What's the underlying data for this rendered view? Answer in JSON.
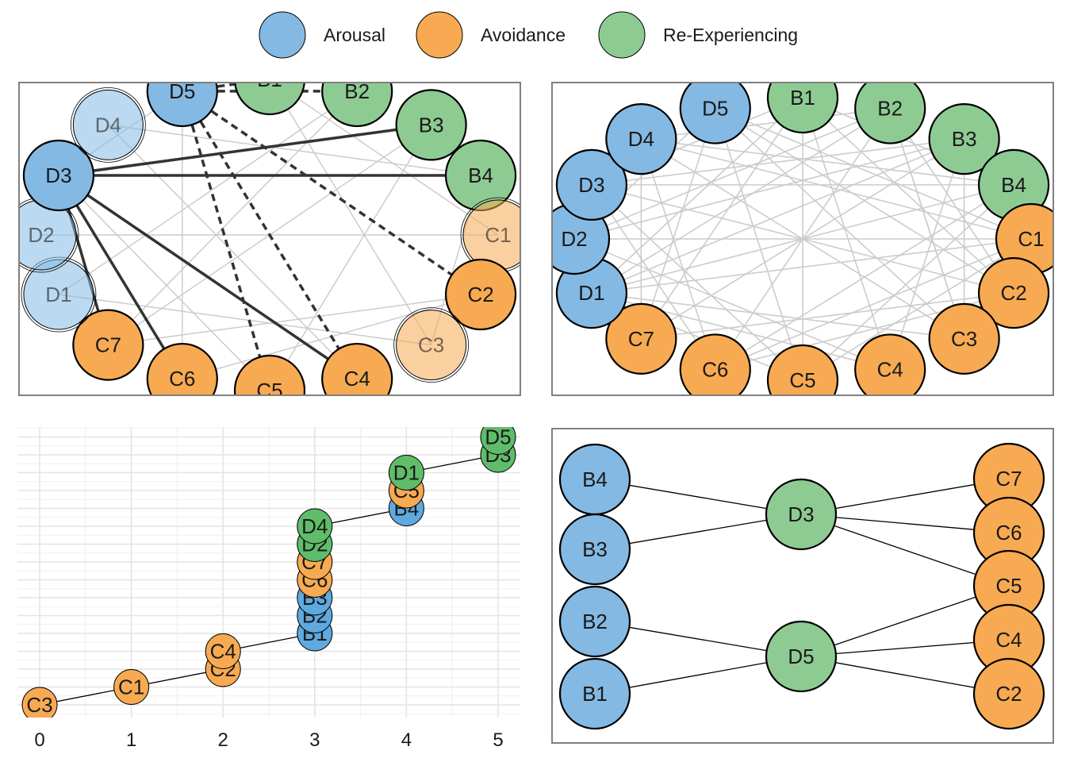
{
  "colors": {
    "arousal": "#84b9e3",
    "avoidance": "#f7aa52",
    "reexp": "#8ecb93",
    "p3_blue": "#5ea9e0",
    "p3_orange": "#f7aa52",
    "p3_green": "#5fbd6a",
    "edge_light": "#cccccc",
    "edge_dark": "#333333",
    "panel_border": "#808080"
  },
  "legend": [
    {
      "label": "Arousal",
      "color": "arousal"
    },
    {
      "label": "Avoidance",
      "color": "avoidance"
    },
    {
      "label": "Re-Experiencing",
      "color": "reexp"
    }
  ],
  "circle_nodes": [
    {
      "id": "D5",
      "group": "arousal"
    },
    {
      "id": "B1",
      "group": "reexp"
    },
    {
      "id": "B2",
      "group": "reexp"
    },
    {
      "id": "B3",
      "group": "reexp"
    },
    {
      "id": "B4",
      "group": "reexp"
    },
    {
      "id": "C1",
      "group": "avoidance"
    },
    {
      "id": "C2",
      "group": "avoidance"
    },
    {
      "id": "C3",
      "group": "avoidance"
    },
    {
      "id": "C4",
      "group": "avoidance"
    },
    {
      "id": "C5",
      "group": "avoidance"
    },
    {
      "id": "C6",
      "group": "avoidance"
    },
    {
      "id": "C7",
      "group": "avoidance"
    },
    {
      "id": "D1",
      "group": "arousal"
    },
    {
      "id": "D2",
      "group": "arousal"
    },
    {
      "id": "D3",
      "group": "arousal"
    },
    {
      "id": "D4",
      "group": "arousal"
    }
  ],
  "panel1": {
    "faded_nodes": [
      "D4",
      "D2",
      "D1",
      "C1",
      "C3"
    ],
    "solid_edges": [
      [
        "D3",
        "B3"
      ],
      [
        "D3",
        "B4"
      ],
      [
        "D3",
        "C4"
      ],
      [
        "D3",
        "C6"
      ],
      [
        "D3",
        "C7"
      ]
    ],
    "dashed_edges": [
      [
        "D5",
        "B1"
      ],
      [
        "D5",
        "B2"
      ],
      [
        "D5",
        "C2"
      ],
      [
        "D5",
        "C4"
      ],
      [
        "D5",
        "C5"
      ]
    ],
    "light_edges": [
      [
        "D3",
        "D5"
      ],
      [
        "D3",
        "C5"
      ],
      [
        "D5",
        "C6"
      ],
      [
        "B1",
        "C1"
      ],
      [
        "B2",
        "C7"
      ],
      [
        "B3",
        "C5"
      ],
      [
        "B4",
        "C3"
      ],
      [
        "C1",
        "D2"
      ],
      [
        "C2",
        "C7"
      ],
      [
        "D4",
        "C4"
      ],
      [
        "B1",
        "C3"
      ],
      [
        "B2",
        "D1"
      ],
      [
        "C2",
        "C6"
      ],
      [
        "D4",
        "B4"
      ],
      [
        "D1",
        "C3"
      ],
      [
        "B3",
        "C7"
      ]
    ]
  },
  "panel2": {
    "edges": [
      [
        "D5",
        "C5"
      ],
      [
        "B1",
        "C5"
      ],
      [
        "B1",
        "C4"
      ],
      [
        "B2",
        "C6"
      ],
      [
        "B3",
        "C7"
      ],
      [
        "B4",
        "D1"
      ],
      [
        "C1",
        "D2"
      ],
      [
        "C2",
        "D3"
      ],
      [
        "C3",
        "D4"
      ],
      [
        "D5",
        "C3"
      ],
      [
        "B1",
        "C7"
      ],
      [
        "B2",
        "D1"
      ],
      [
        "B3",
        "D2"
      ],
      [
        "B4",
        "D3"
      ],
      [
        "C1",
        "D4"
      ],
      [
        "C2",
        "D5"
      ],
      [
        "B1",
        "C2"
      ],
      [
        "B2",
        "C3"
      ],
      [
        "B3",
        "C4"
      ],
      [
        "B4",
        "C5"
      ],
      [
        "C1",
        "C6"
      ],
      [
        "C2",
        "C7"
      ],
      [
        "C3",
        "D1"
      ],
      [
        "C4",
        "D2"
      ],
      [
        "C5",
        "D3"
      ],
      [
        "C6",
        "D4"
      ],
      [
        "C7",
        "D5"
      ],
      [
        "D1",
        "B1"
      ],
      [
        "D2",
        "B2"
      ],
      [
        "D3",
        "B3"
      ],
      [
        "D4",
        "B4"
      ],
      [
        "D5",
        "C1"
      ],
      [
        "B1",
        "B4"
      ],
      [
        "B2",
        "C2"
      ],
      [
        "B3",
        "C3"
      ],
      [
        "C1",
        "C5"
      ],
      [
        "C2",
        "C6"
      ],
      [
        "C4",
        "D1"
      ],
      [
        "C6",
        "D3"
      ],
      [
        "C7",
        "D4"
      ],
      [
        "D2",
        "D5"
      ],
      [
        "B2",
        "D4"
      ],
      [
        "B4",
        "C6"
      ],
      [
        "C1",
        "D1"
      ],
      [
        "B1",
        "D3"
      ],
      [
        "B3",
        "D1"
      ],
      [
        "C5",
        "D1"
      ],
      [
        "C3",
        "B2"
      ]
    ]
  },
  "panel3": {
    "x_ticks": [
      "0",
      "1",
      "2",
      "3",
      "4",
      "5"
    ],
    "points": [
      {
        "label": "C3",
        "x": 0,
        "y": 1,
        "color": "p3_orange"
      },
      {
        "label": "C1",
        "x": 1,
        "y": 2,
        "color": "p3_orange"
      },
      {
        "label": "C2",
        "x": 2,
        "y": 3,
        "color": "p3_orange"
      },
      {
        "label": "C4",
        "x": 2,
        "y": 4,
        "color": "p3_orange"
      },
      {
        "label": "B1",
        "x": 3,
        "y": 5,
        "color": "p3_blue"
      },
      {
        "label": "B2",
        "x": 3,
        "y": 6,
        "color": "p3_blue"
      },
      {
        "label": "B3",
        "x": 3,
        "y": 7,
        "color": "p3_blue"
      },
      {
        "label": "C6",
        "x": 3,
        "y": 8,
        "color": "p3_orange"
      },
      {
        "label": "C7",
        "x": 3,
        "y": 9,
        "color": "p3_orange"
      },
      {
        "label": "D2",
        "x": 3,
        "y": 10,
        "color": "p3_green"
      },
      {
        "label": "D4",
        "x": 3,
        "y": 11,
        "color": "p3_green"
      },
      {
        "label": "B4",
        "x": 4,
        "y": 12,
        "color": "p3_blue"
      },
      {
        "label": "C5",
        "x": 4,
        "y": 13,
        "color": "p3_orange"
      },
      {
        "label": "D1",
        "x": 4,
        "y": 14,
        "color": "p3_green"
      },
      {
        "label": "D3",
        "x": 5,
        "y": 15,
        "color": "p3_green"
      },
      {
        "label": "D5",
        "x": 5,
        "y": 16,
        "color": "p3_green"
      }
    ],
    "path": [
      "C3",
      "C1",
      "C2",
      "C4",
      "B1",
      "D4",
      "B4",
      "D1",
      "D3"
    ]
  },
  "panel4": {
    "left": [
      {
        "id": "B4",
        "color": "arousal"
      },
      {
        "id": "B3",
        "color": "arousal"
      },
      {
        "id": "B2",
        "color": "arousal"
      },
      {
        "id": "B1",
        "color": "arousal"
      }
    ],
    "middle": [
      {
        "id": "D3",
        "color": "reexp"
      },
      {
        "id": "D5",
        "color": "reexp"
      }
    ],
    "right": [
      {
        "id": "C7",
        "color": "avoidance"
      },
      {
        "id": "C6",
        "color": "avoidance"
      },
      {
        "id": "C5",
        "color": "avoidance"
      },
      {
        "id": "C4",
        "color": "avoidance"
      },
      {
        "id": "C2",
        "color": "avoidance"
      }
    ],
    "edges": [
      [
        "B4",
        "D3"
      ],
      [
        "B3",
        "D3"
      ],
      [
        "B2",
        "D5"
      ],
      [
        "B1",
        "D5"
      ],
      [
        "D3",
        "C7"
      ],
      [
        "D3",
        "C6"
      ],
      [
        "D3",
        "C5"
      ],
      [
        "D5",
        "C5"
      ],
      [
        "D5",
        "C4"
      ],
      [
        "D5",
        "C2"
      ]
    ]
  }
}
